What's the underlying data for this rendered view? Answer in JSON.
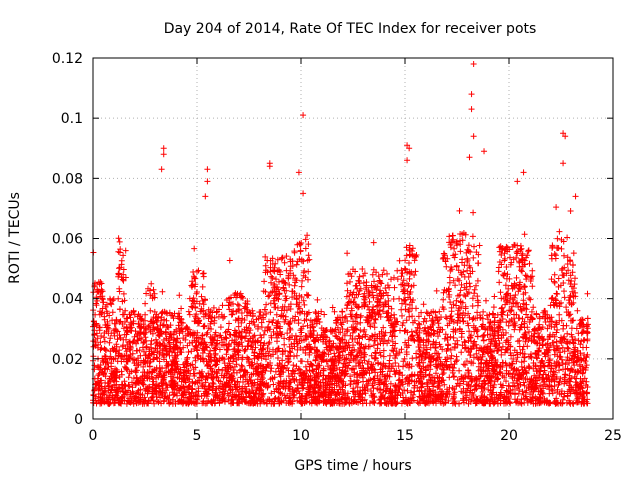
{
  "chart_data": {
    "type": "scatter",
    "title": "Day 204 of 2014, Rate Of TEC Index for receiver pots",
    "xlabel": "GPS time / hours",
    "ylabel": "ROTI / TECUs",
    "xlim": [
      0,
      25
    ],
    "ylim": [
      0,
      0.12
    ],
    "xticks": [
      "0",
      "5",
      "10",
      "15",
      "20",
      "25"
    ],
    "yticks": [
      "0",
      "0.02",
      "0.04",
      "0.06",
      "0.08",
      "0.1",
      "0.12"
    ],
    "grid": true,
    "marker": "+",
    "color": "#ff0000",
    "series": [
      {
        "name": "ROTI",
        "description": "Dense scatter of ROTI samples over the day; typical values 0.005–0.045 TECU/min with sporadic peaks",
        "peaks": [
          {
            "x": 3.4,
            "y": 0.09
          },
          {
            "x": 3.4,
            "y": 0.088
          },
          {
            "x": 3.3,
            "y": 0.083
          },
          {
            "x": 5.5,
            "y": 0.083
          },
          {
            "x": 5.5,
            "y": 0.079
          },
          {
            "x": 5.4,
            "y": 0.074
          },
          {
            "x": 8.5,
            "y": 0.085
          },
          {
            "x": 8.5,
            "y": 0.084
          },
          {
            "x": 9.9,
            "y": 0.082
          },
          {
            "x": 10.1,
            "y": 0.101
          },
          {
            "x": 10.1,
            "y": 0.075
          },
          {
            "x": 15.1,
            "y": 0.091
          },
          {
            "x": 15.2,
            "y": 0.09
          },
          {
            "x": 15.1,
            "y": 0.086
          },
          {
            "x": 18.3,
            "y": 0.118
          },
          {
            "x": 18.2,
            "y": 0.108
          },
          {
            "x": 18.2,
            "y": 0.103
          },
          {
            "x": 18.3,
            "y": 0.094
          },
          {
            "x": 18.1,
            "y": 0.087
          },
          {
            "x": 18.8,
            "y": 0.089
          },
          {
            "x": 20.4,
            "y": 0.079
          },
          {
            "x": 20.7,
            "y": 0.082
          },
          {
            "x": 22.6,
            "y": 0.095
          },
          {
            "x": 22.7,
            "y": 0.094
          },
          {
            "x": 22.6,
            "y": 0.085
          },
          {
            "x": 23.2,
            "y": 0.074
          }
        ]
      }
    ]
  }
}
